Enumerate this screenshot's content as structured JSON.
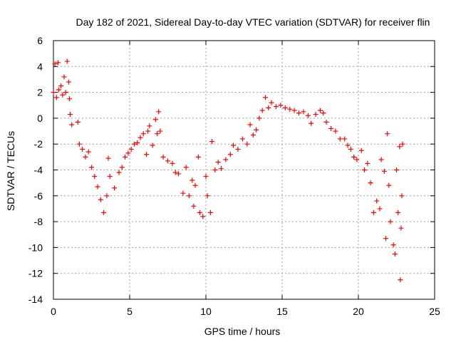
{
  "chart_data": {
    "type": "scatter",
    "title": "Day 182 of 2021, Sidereal Day-to-day VTEC variation (SDTVAR) for receiver flin",
    "xlabel": "GPS time / hours",
    "ylabel": "SDTVAR / TECUs",
    "xlim": [
      0,
      25
    ],
    "ylim": [
      -14,
      6
    ],
    "xticks": [
      0,
      5,
      10,
      15,
      20,
      25
    ],
    "yticks": [
      -14,
      -12,
      -10,
      -8,
      -6,
      -4,
      -2,
      0,
      2,
      4,
      6
    ],
    "grid": true,
    "marker": "+",
    "color": "#ff0000",
    "series": [
      {
        "name": "SDTVAR",
        "points": [
          [
            0.0,
            2.0
          ],
          [
            0.1,
            4.2
          ],
          [
            0.2,
            1.6
          ],
          [
            0.3,
            4.3
          ],
          [
            0.35,
            2.2
          ],
          [
            0.5,
            2.5
          ],
          [
            0.6,
            1.8
          ],
          [
            0.7,
            3.2
          ],
          [
            0.8,
            2.0
          ],
          [
            0.9,
            4.4
          ],
          [
            1.0,
            2.8
          ],
          [
            1.05,
            1.5
          ],
          [
            1.1,
            0.3
          ],
          [
            1.2,
            -0.5
          ],
          [
            1.6,
            -0.3
          ],
          [
            1.7,
            -2.0
          ],
          [
            1.9,
            -2.4
          ],
          [
            2.1,
            -3.0
          ],
          [
            2.3,
            -2.6
          ],
          [
            2.5,
            -3.8
          ],
          [
            2.7,
            -4.5
          ],
          [
            2.9,
            -5.3
          ],
          [
            3.1,
            -6.3
          ],
          [
            3.3,
            -7.3
          ],
          [
            3.5,
            -6.0
          ],
          [
            3.7,
            -4.5
          ],
          [
            3.6,
            -3.1
          ],
          [
            4.0,
            -5.4
          ],
          [
            4.3,
            -4.2
          ],
          [
            4.5,
            -3.8
          ],
          [
            4.7,
            -3.0
          ],
          [
            4.9,
            -2.7
          ],
          [
            5.1,
            -2.4
          ],
          [
            5.3,
            -2.0
          ],
          [
            5.5,
            -1.9
          ],
          [
            5.7,
            -1.5
          ],
          [
            5.9,
            -1.2
          ],
          [
            6.1,
            -2.8
          ],
          [
            6.2,
            -1.0
          ],
          [
            6.3,
            -0.6
          ],
          [
            6.5,
            -2.1
          ],
          [
            6.7,
            -0.1
          ],
          [
            6.8,
            -1.2
          ],
          [
            6.9,
            0.5
          ],
          [
            7.0,
            -1.0
          ],
          [
            7.2,
            -3.0
          ],
          [
            7.5,
            -3.3
          ],
          [
            7.8,
            -3.5
          ],
          [
            8.0,
            -4.2
          ],
          [
            8.2,
            -4.3
          ],
          [
            8.5,
            -5.8
          ],
          [
            8.7,
            -3.8
          ],
          [
            8.9,
            -6.0
          ],
          [
            9.1,
            -4.8
          ],
          [
            9.2,
            -6.8
          ],
          [
            9.3,
            -5.2
          ],
          [
            9.5,
            -3.0
          ],
          [
            9.6,
            -7.3
          ],
          [
            9.8,
            -7.6
          ],
          [
            10.0,
            -4.5
          ],
          [
            10.1,
            -6.0
          ],
          [
            10.3,
            -7.3
          ],
          [
            10.4,
            -1.8
          ],
          [
            10.6,
            -4.0
          ],
          [
            10.8,
            -3.4
          ],
          [
            11.0,
            -3.9
          ],
          [
            11.3,
            -3.2
          ],
          [
            11.6,
            -2.8
          ],
          [
            11.8,
            -2.1
          ],
          [
            12.1,
            -2.4
          ],
          [
            12.4,
            -1.6
          ],
          [
            12.7,
            -2.0
          ],
          [
            12.9,
            -0.5
          ],
          [
            13.1,
            -1.3
          ],
          [
            13.3,
            -0.9
          ],
          [
            13.5,
            0.0
          ],
          [
            13.7,
            0.6
          ],
          [
            13.9,
            1.6
          ],
          [
            14.1,
            0.8
          ],
          [
            14.3,
            1.2
          ],
          [
            14.6,
            0.9
          ],
          [
            14.9,
            1.0
          ],
          [
            15.2,
            0.8
          ],
          [
            15.5,
            0.7
          ],
          [
            15.8,
            0.6
          ],
          [
            16.1,
            0.4
          ],
          [
            16.4,
            0.5
          ],
          [
            16.7,
            0.2
          ],
          [
            16.9,
            -0.4
          ],
          [
            17.2,
            0.3
          ],
          [
            17.5,
            0.6
          ],
          [
            17.7,
            0.4
          ],
          [
            17.9,
            -0.3
          ],
          [
            18.2,
            -0.8
          ],
          [
            18.5,
            -1.0
          ],
          [
            18.8,
            -1.6
          ],
          [
            19.1,
            -1.6
          ],
          [
            19.3,
            -2.1
          ],
          [
            19.5,
            -2.4
          ],
          [
            19.7,
            -3.0
          ],
          [
            19.9,
            -3.2
          ],
          [
            20.2,
            -2.5
          ],
          [
            20.4,
            -4.0
          ],
          [
            20.6,
            -3.5
          ],
          [
            20.8,
            -5.0
          ],
          [
            21.0,
            -7.3
          ],
          [
            21.2,
            -6.4
          ],
          [
            21.4,
            -7.0
          ],
          [
            21.5,
            -3.2
          ],
          [
            21.7,
            -4.1
          ],
          [
            21.8,
            -9.3
          ],
          [
            21.9,
            -1.2
          ],
          [
            22.0,
            -5.2
          ],
          [
            22.1,
            -8.0
          ],
          [
            22.3,
            -9.8
          ],
          [
            22.4,
            -10.5
          ],
          [
            22.5,
            -4.0
          ],
          [
            22.6,
            -7.3
          ],
          [
            22.7,
            -2.2
          ],
          [
            22.75,
            -12.5
          ],
          [
            22.8,
            -8.5
          ],
          [
            22.85,
            -6.0
          ],
          [
            22.9,
            -2.0
          ]
        ]
      }
    ]
  }
}
